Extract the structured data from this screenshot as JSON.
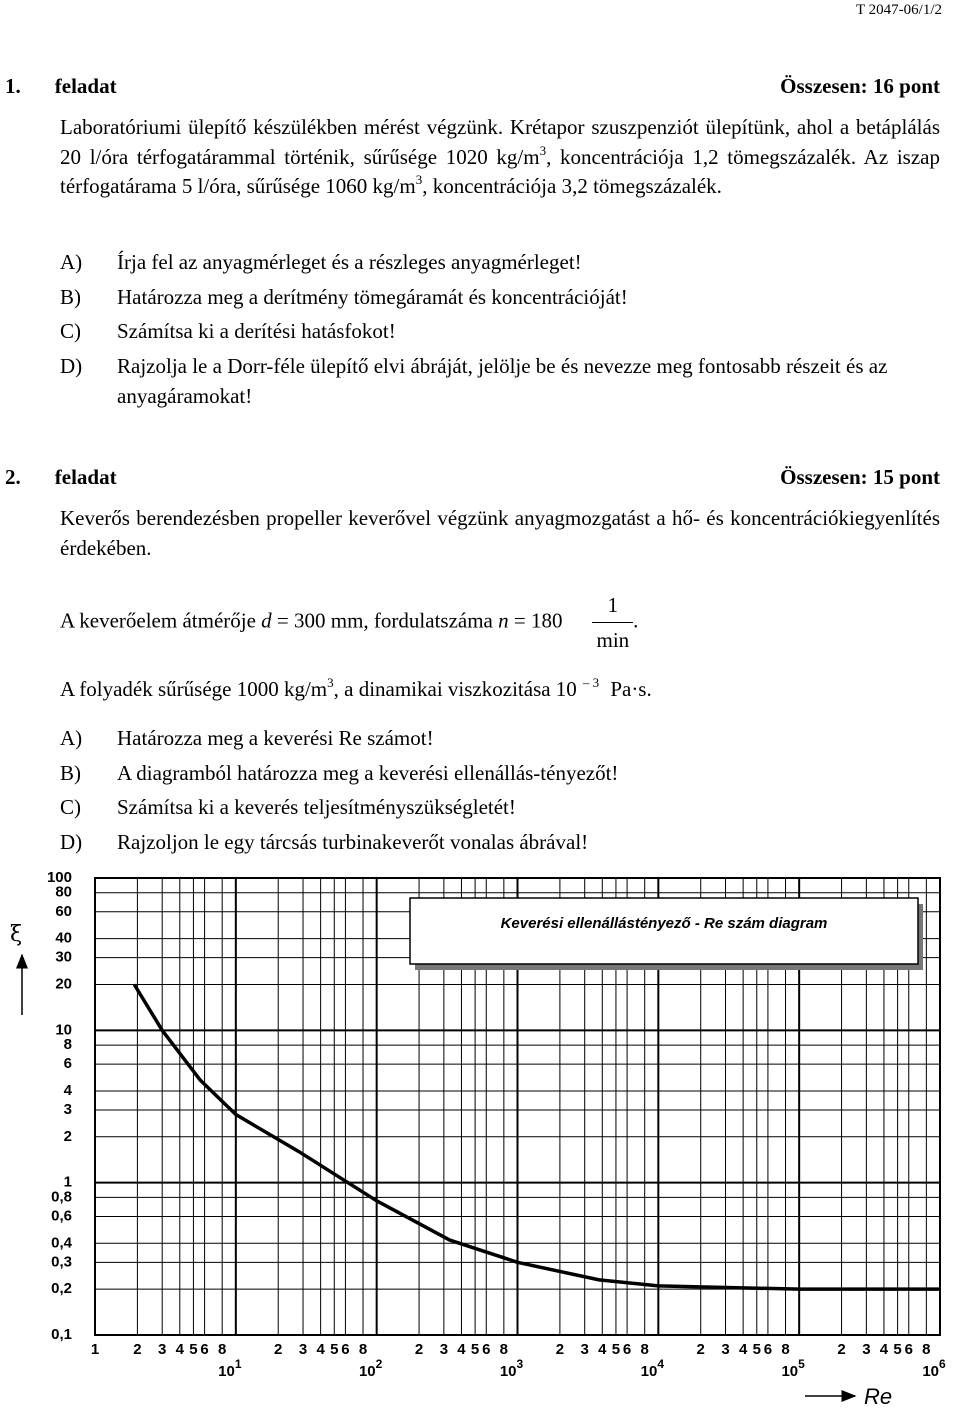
{
  "header": "T 2047-06/1/2",
  "task1": {
    "number": "1.",
    "title": "feladat",
    "total": "Összesen: 16 pont",
    "intro": [
      "Laboratóriumi ülepítő készülékben mérést végzünk. Krétapor szuszpenziót ülepítünk, ahol a betáplálás 20 l/óra térfogatárammal történik, sűrűsége 1020 kg/m",
      "3",
      ", koncentrációja 1,2 tömegszázalék. Az iszap térfogatárama 5 l/óra, sűrűsége 1060 kg/m",
      "3",
      ", koncentrációja 3,2 tömegszázalék."
    ],
    "items": [
      {
        "letter": "A)",
        "text": "Írja fel az anyagmérleget és a részleges anyagmérleget!"
      },
      {
        "letter": "B)",
        "text": "Határozza meg a derítmény tömegáramát és koncentrációját!"
      },
      {
        "letter": "C)",
        "text": "Számítsa ki a derítési hatásfokot!"
      },
      {
        "letter": "D)",
        "text": "Rajzolja le a Dorr-féle ülepítő elvi ábráját, jelölje be és nevezze meg fontosabb részeit és az anyagáramokat!"
      }
    ]
  },
  "task2": {
    "number": "2.",
    "title": "feladat",
    "total": "Összesen: 15 pont",
    "intro": "Keverős berendezésben propeller keverővel végzünk anyagmozgatást a hő- és koncentrációkiegyenlítés érdekében.",
    "given1": [
      "A keverőelem átmérője ",
      "d",
      " = 300 mm, fordulatszáma ",
      "n",
      " = 180",
      "1",
      "min",
      "."
    ],
    "given2": [
      "A folyadék sűrűsége 1000 kg/m",
      "3",
      ", a dinamikai viszkozitása 10",
      "– 3",
      " Pa·s."
    ],
    "items": [
      {
        "letter": "A)",
        "text": "Határozza meg a keverési Re számot!"
      },
      {
        "letter": "B)",
        "text": "A diagramból határozza meg a keverési ellenállás-tényezőt!"
      },
      {
        "letter": "C)",
        "text": "Számítsa ki a keverés teljesítményszükségletét!"
      },
      {
        "letter": "D)",
        "text": "Rajzoljon le egy tárcsás turbinakeverőt vonalas ábrával!"
      }
    ]
  },
  "chart_data": {
    "type": "line",
    "title": "Keverési ellenállástényező - Re szám diagram",
    "x_label": "Re",
    "y_label": "ξ",
    "log_x": true,
    "log_y": true,
    "grid": true,
    "xlim": [
      1,
      1000000
    ],
    "ylim": [
      0.1,
      100
    ],
    "xticks": [
      1,
      2,
      3,
      4,
      5,
      6,
      8,
      {
        "value": 10,
        "label": "10",
        "exponent": "1"
      },
      {
        "value": 20,
        "label": "2"
      },
      {
        "value": 30,
        "label": "3"
      },
      {
        "value": 40,
        "label": "4"
      },
      {
        "value": 50,
        "label": "5"
      },
      {
        "value": 60,
        "label": "6"
      },
      {
        "value": 80,
        "label": "8"
      },
      {
        "value": 100,
        "label": "10",
        "exponent": "2"
      },
      {
        "value": 200,
        "label": "2"
      },
      {
        "value": 300,
        "label": "3"
      },
      {
        "value": 400,
        "label": "4"
      },
      {
        "value": 500,
        "label": "5"
      },
      {
        "value": 600,
        "label": "6"
      },
      {
        "value": 800,
        "label": "8"
      },
      {
        "value": 1000,
        "label": "10",
        "exponent": "3"
      },
      {
        "value": 2000,
        "label": "2"
      },
      {
        "value": 3000,
        "label": "3"
      },
      {
        "value": 4000,
        "label": "4"
      },
      {
        "value": 5000,
        "label": "5"
      },
      {
        "value": 6000,
        "label": "6"
      },
      {
        "value": 8000,
        "label": "8"
      },
      {
        "value": 10000,
        "label": "10",
        "exponent": "4"
      },
      {
        "value": 20000,
        "label": "2"
      },
      {
        "value": 30000,
        "label": "3"
      },
      {
        "value": 40000,
        "label": "4"
      },
      {
        "value": 50000,
        "label": "5"
      },
      {
        "value": 60000,
        "label": "6"
      },
      {
        "value": 80000,
        "label": "8"
      },
      {
        "value": 100000,
        "label": "10",
        "exponent": "5"
      },
      {
        "value": 200000,
        "label": "2"
      },
      {
        "value": 300000,
        "label": "3"
      },
      {
        "value": 400000,
        "label": "4"
      },
      {
        "value": 500000,
        "label": "5"
      },
      {
        "value": 600000,
        "label": "6"
      },
      {
        "value": 800000,
        "label": "8"
      },
      {
        "value": 1000000,
        "label": "10",
        "exponent": "6"
      }
    ],
    "yticks": [
      100,
      80,
      60,
      40,
      30,
      20,
      10,
      8,
      6,
      4,
      3,
      2,
      1,
      {
        "value": 0.8,
        "label": "0,8"
      },
      {
        "value": 0.6,
        "label": "0,6"
      },
      {
        "value": 0.4,
        "label": "0,4"
      },
      {
        "value": 0.3,
        "label": "0,3"
      },
      {
        "value": 0.2,
        "label": "0,2"
      },
      {
        "value": 0.1,
        "label": "0,1"
      }
    ],
    "series": [
      {
        "color": "#000000",
        "x": [
          1.9,
          3,
          5.6,
          10,
          28,
          100,
          330,
          1000,
          3800,
          10000,
          100000,
          1000000
        ],
        "values": [
          20,
          10,
          4.7,
          2.8,
          1.6,
          0.76,
          0.42,
          0.3,
          0.23,
          0.21,
          0.2,
          0.2
        ]
      }
    ]
  }
}
